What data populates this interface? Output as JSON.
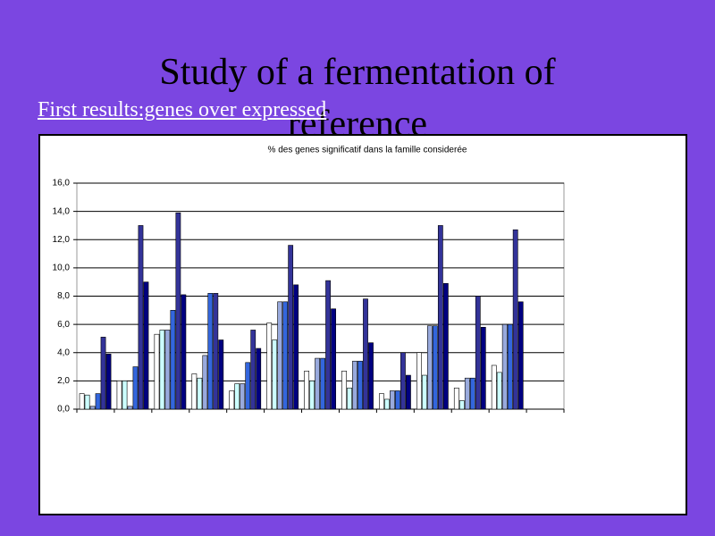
{
  "title": "Study of a fermentation of reference",
  "subtitle": "First results:genes over expressed",
  "chart_data": {
    "type": "bar",
    "title": "% des genes significatif  dans la famille considerée",
    "categories": [
      null,
      null,
      null,
      null,
      null,
      null,
      null,
      null,
      null,
      null,
      null,
      null,
      null
    ],
    "series": [
      {
        "color": "#ffffff",
        "values": [
          1.1,
          2.0,
          5.3,
          2.5,
          1.3,
          6.1,
          2.7,
          2.7,
          1.1,
          4.0,
          1.5,
          3.1,
          null
        ]
      },
      {
        "color": "#ccffff",
        "values": [
          1.0,
          2.0,
          5.6,
          2.2,
          1.8,
          4.9,
          2.0,
          1.5,
          0.7,
          2.4,
          0.6,
          2.6,
          null
        ]
      },
      {
        "color": "#99aadd",
        "values": [
          0.2,
          0.2,
          5.6,
          3.8,
          1.8,
          7.6,
          3.6,
          3.4,
          1.3,
          5.9,
          2.2,
          6.0,
          null
        ]
      },
      {
        "color": "#3366dd",
        "values": [
          1.1,
          3.0,
          7.0,
          8.2,
          3.3,
          7.6,
          3.6,
          3.4,
          1.3,
          5.9,
          2.2,
          6.0,
          null
        ]
      },
      {
        "color": "#333399",
        "values": [
          5.1,
          13.0,
          13.9,
          8.2,
          5.6,
          11.6,
          9.1,
          7.8,
          4.0,
          13.0,
          8.0,
          12.7,
          null
        ]
      },
      {
        "color": "#000080",
        "values": [
          3.9,
          9.0,
          8.1,
          4.9,
          4.3,
          8.8,
          7.1,
          4.7,
          2.4,
          8.9,
          5.8,
          7.6,
          null
        ]
      }
    ],
    "ylim": [
      0,
      16
    ],
    "yticks": [
      {
        "value": 0,
        "label": "0,0"
      },
      {
        "value": 2,
        "label": "2,0"
      },
      {
        "value": 4,
        "label": "4,0"
      },
      {
        "value": 6,
        "label": "6,0"
      },
      {
        "value": 8,
        "label": "8,0"
      },
      {
        "value": 10,
        "label": "10,0"
      },
      {
        "value": 12,
        "label": "12,0"
      },
      {
        "value": 14,
        "label": "14,0"
      },
      {
        "value": 16,
        "label": "16,0"
      }
    ],
    "grid": true
  }
}
